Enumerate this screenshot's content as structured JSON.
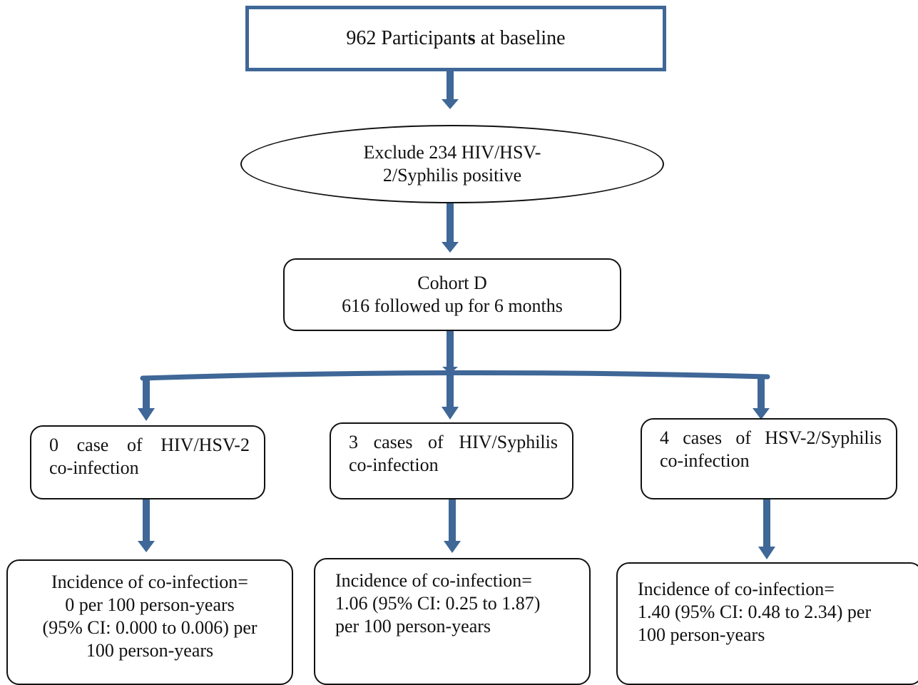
{
  "top_box": {
    "text_before": "962 Participant",
    "text_bold": "s",
    "text_after": " at baseline"
  },
  "exclusion": {
    "lines": [
      "Exclude 234 HIV/HSV-",
      "2/Syphilis positive"
    ]
  },
  "cohort": {
    "lines": [
      "Cohort D",
      "616 followed up for 6 months"
    ]
  },
  "cases": [
    {
      "line1_words": [
        "0",
        "case",
        "of",
        "HIV/HSV-2"
      ],
      "line2": "co-infection"
    },
    {
      "line1_words": [
        "3",
        "cases",
        "of",
        "HIV/Syphilis"
      ],
      "line2": "co-infection"
    },
    {
      "line1_words": [
        "4",
        "cases",
        "of",
        "HSV-2/Syphilis"
      ],
      "line2": "co-infection"
    }
  ],
  "incidence": [
    {
      "lines": [
        "Incidence of co-infection=",
        "0 per 100 person-years",
        "(95% CI: 0.000 to 0.006) per",
        "100 person-years"
      ]
    },
    {
      "lines": [
        "Incidence of co-infection=",
        "1.06 (95% CI: 0.25 to 1.87)",
        "per 100 person-years"
      ]
    },
    {
      "lines": [
        "Incidence of co-infection=",
        "1.40 (95% CI: 0.48 to 2.34) per",
        "100 person-years"
      ]
    }
  ],
  "colors": {
    "arrow": "#3f6797",
    "box_border": "#111111",
    "top_box_border": "#3f6797"
  }
}
